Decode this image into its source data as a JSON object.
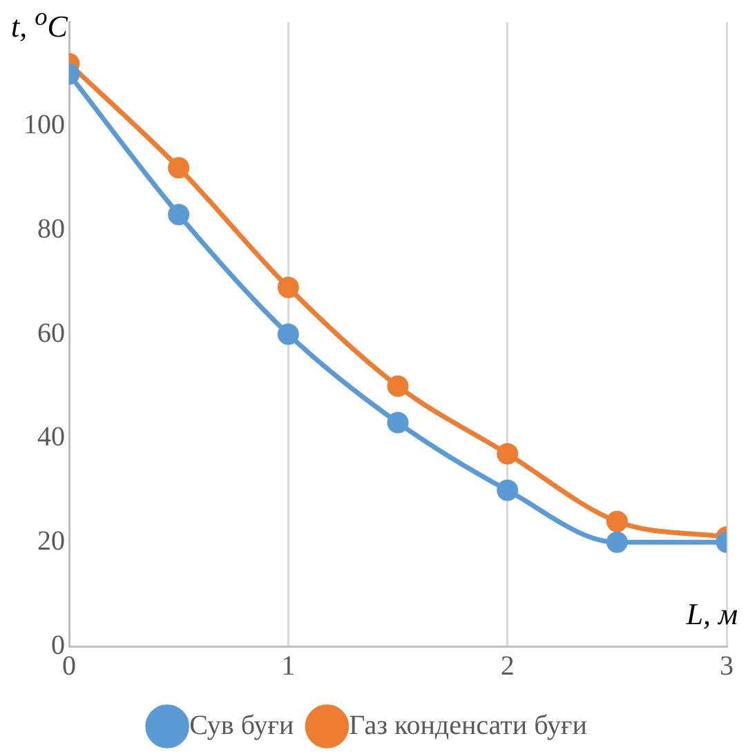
{
  "chart_data": {
    "type": "line",
    "xlabel": "L, м",
    "ylabel": "t, $^{o}$C",
    "x": [
      0,
      0.5,
      1,
      1.5,
      2,
      2.5,
      3
    ],
    "series": [
      {
        "name": "Сув буғи",
        "color": "#5b9bd5",
        "values": [
          110,
          83,
          60,
          43,
          30,
          20,
          20
        ]
      },
      {
        "name": "Газ конденсати буғи",
        "color": "#ed7d31",
        "values": [
          112,
          92,
          69,
          50,
          37,
          24,
          21
        ]
      }
    ],
    "xlim": [
      0,
      3
    ],
    "xticks": [
      0,
      1,
      2,
      3
    ],
    "ylim": [
      0,
      120
    ],
    "yticks": [
      0,
      20,
      40,
      60,
      80,
      100
    ],
    "grid": "x",
    "legend": "bottom",
    "marker": "circle",
    "line_style": "solid"
  }
}
